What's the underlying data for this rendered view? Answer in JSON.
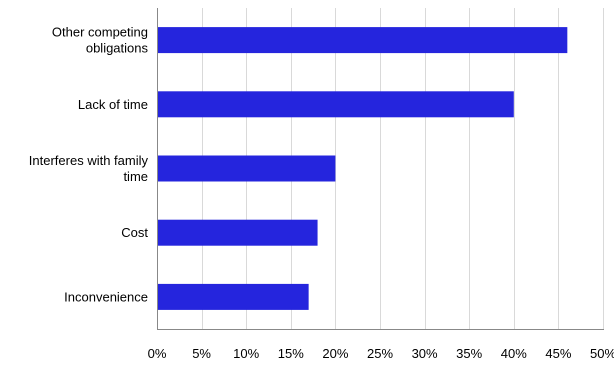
{
  "chart_data": {
    "type": "bar",
    "orientation": "horizontal",
    "categories": [
      [
        "Other competing",
        "obligations"
      ],
      [
        "Lack of time"
      ],
      [
        "Interferes with family",
        "time"
      ],
      [
        "Cost"
      ],
      [
        "Inconvenience"
      ]
    ],
    "values": [
      46,
      40,
      20,
      18,
      17
    ],
    "xlim": [
      0,
      50
    ],
    "x_ticks": [
      0,
      5,
      10,
      15,
      20,
      25,
      30,
      35,
      40,
      45,
      50
    ],
    "x_tick_labels": [
      "0%",
      "5%",
      "10%",
      "15%",
      "20%",
      "25%",
      "30%",
      "35%",
      "40%",
      "45%",
      "50%"
    ],
    "grid": "vertical",
    "bar_color": "#2525dd",
    "grid_color": "#d9d9d9",
    "axis_color": "#888888",
    "title": "",
    "xlabel": "",
    "ylabel": ""
  }
}
